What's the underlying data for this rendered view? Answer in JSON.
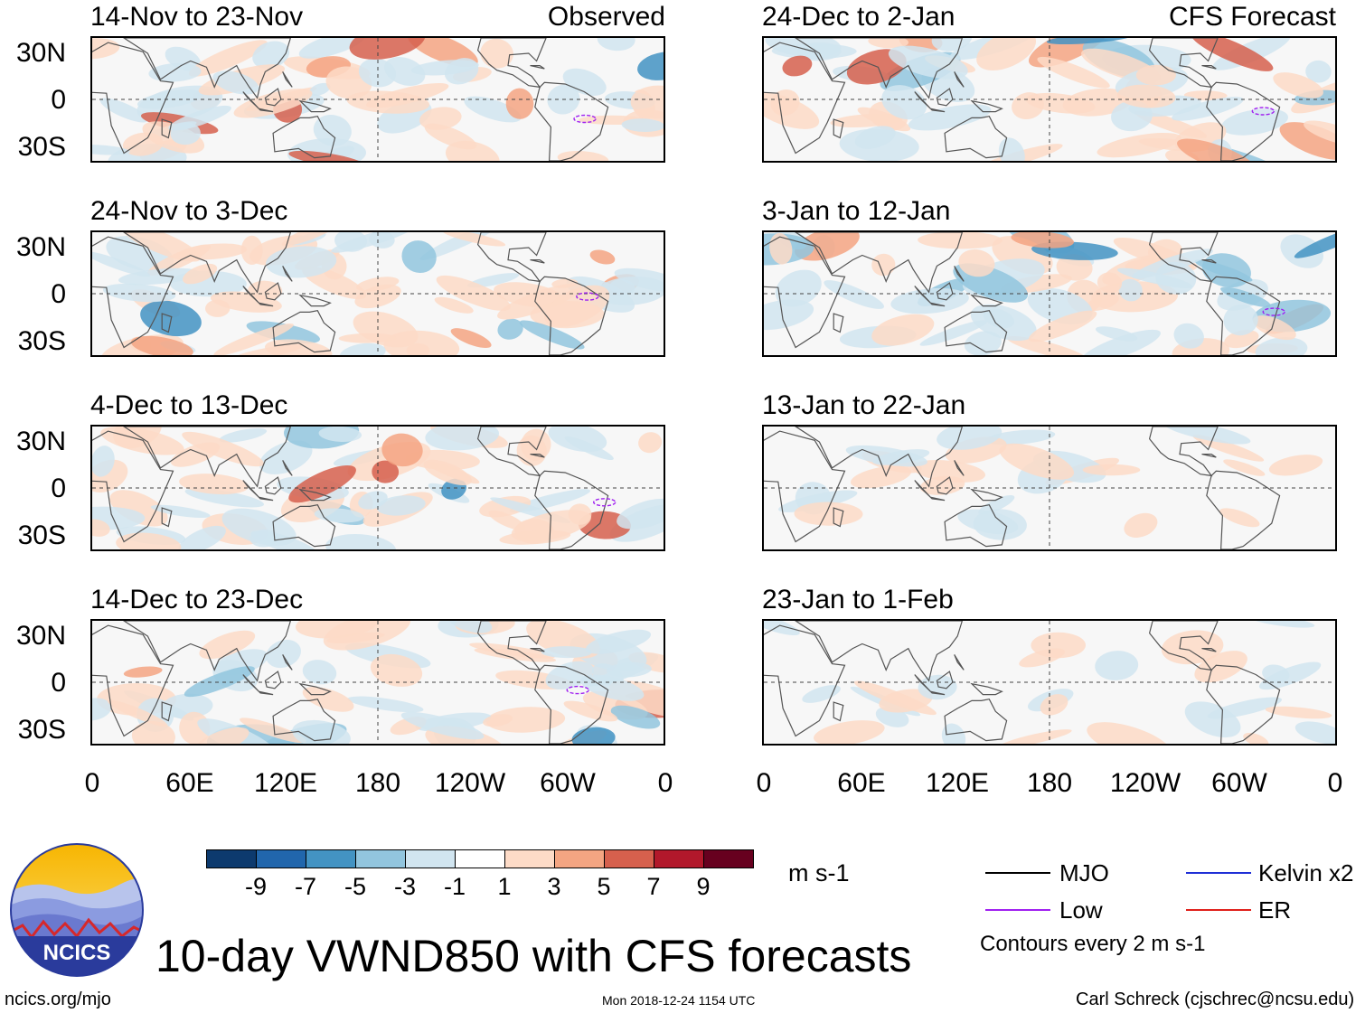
{
  "header": {
    "observed_label": "Observed",
    "forecast_label": "CFS Forecast"
  },
  "panels_left": [
    {
      "title": "14-Nov to 23-Nov"
    },
    {
      "title": "24-Nov to 3-Dec"
    },
    {
      "title": "4-Dec to 13-Dec"
    },
    {
      "title": "14-Dec to 23-Dec"
    }
  ],
  "panels_right": [
    {
      "title": "24-Dec to 2-Jan"
    },
    {
      "title": "3-Jan to 12-Jan"
    },
    {
      "title": "13-Jan to 22-Jan"
    },
    {
      "title": "23-Jan to 1-Feb"
    }
  ],
  "lat_labels": [
    "30N",
    "0",
    "30S"
  ],
  "lon_labels": [
    "0",
    "60E",
    "120E",
    "180",
    "120W",
    "60W",
    "0"
  ],
  "colorbar": {
    "units": "m s-1",
    "labels": [
      "-9",
      "-7",
      "-5",
      "-3",
      "-1",
      "1",
      "3",
      "5",
      "7",
      "9"
    ],
    "colors": [
      "#0d3a6e",
      "#2166ac",
      "#4393c3",
      "#92c5de",
      "#d1e5f0",
      "#ffffff",
      "#fddbc7",
      "#f4a582",
      "#d6604d",
      "#b2182b",
      "#67001f"
    ]
  },
  "legend": {
    "mjo": "MJO",
    "kelvin": "Kelvin x2",
    "low": "Low",
    "er": "ER",
    "contours": "Contours every 2 m s-1",
    "colors": {
      "mjo": "#000000",
      "kelvin": "#1f2fd6",
      "low": "#a020f0",
      "er": "#e0201b"
    }
  },
  "footer": {
    "title": "10-day VWND850 with CFS forecasts",
    "logo_text": "NCICS",
    "site": "ncics.org/mjo",
    "timestamp": "Mon 2018-12-24 1154 UTC",
    "author": "Carl Schreck (cjschrec@ncsu.edu)"
  }
}
